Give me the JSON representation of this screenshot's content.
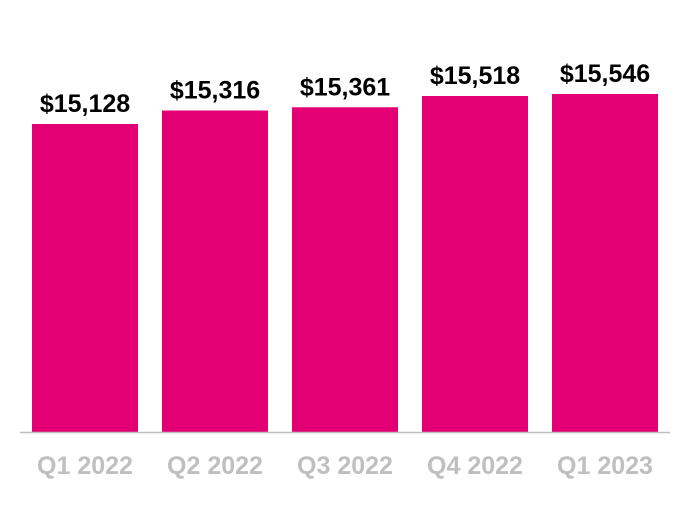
{
  "chart_data": {
    "type": "bar",
    "categories": [
      "Q1 2022",
      "Q2 2022",
      "Q3 2022",
      "Q4 2022",
      "Q1 2023"
    ],
    "values": [
      15128,
      15316,
      15361,
      15518,
      15546
    ],
    "data_labels": [
      "$15,128",
      "$15,316",
      "$15,361",
      "$15,518",
      "$15,546"
    ],
    "title": "",
    "xlabel": "",
    "ylabel": "",
    "grid": false,
    "legend": "none",
    "colors": {
      "bar": "#E20074",
      "data_label": "#000000",
      "tick_label": "#BFBFBF",
      "axis": "#BFBFBF"
    }
  }
}
